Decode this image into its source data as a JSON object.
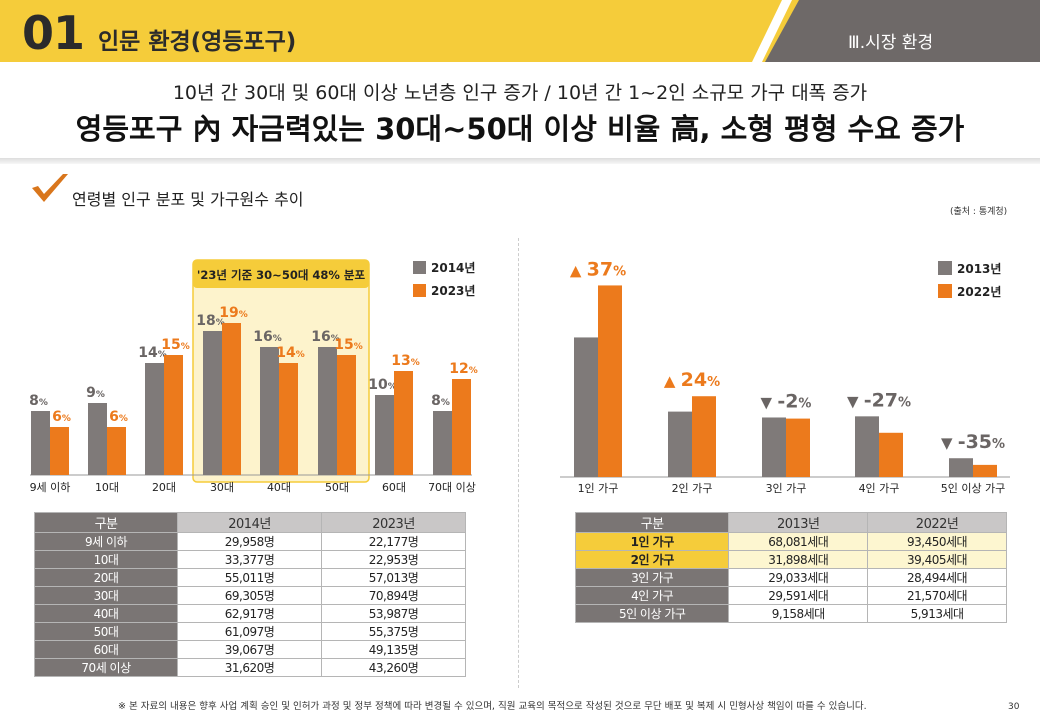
{
  "header": {
    "number": "01",
    "title": "인문 환경(영등포구)",
    "section": "Ⅲ.시장 환경"
  },
  "subtitle": "10년 간 30대 및 60대 이상 노년층 인구 증가 / 10년 간 1~2인 소규모 가구 대폭 증가",
  "headline": "영등포구 內 자금력있는 30대~50대 이상 비율 高, 소형 평형 수요 증가",
  "section_title": "연령별 인구 분포 및 가구원수 추이",
  "source": "(출처 : 통계청)",
  "colors": {
    "gray": "#7f7a79",
    "orange": "#ec7a1c",
    "yellow": "#f5cc3a"
  },
  "chart_data": [
    {
      "type": "bar",
      "categories": [
        "9세 이하",
        "10대",
        "20대",
        "30대",
        "40대",
        "50대",
        "60대",
        "70대 이상"
      ],
      "series": [
        {
          "name": "2014년",
          "values": [
            8,
            9,
            14,
            18,
            16,
            16,
            10,
            8
          ],
          "labels": [
            "8%",
            "9%",
            "14%",
            "18%",
            "16%",
            "16%",
            "10%",
            "8%"
          ]
        },
        {
          "name": "2023년",
          "values": [
            6,
            6,
            15,
            19,
            14,
            15,
            13,
            12
          ],
          "labels": [
            "6%",
            "6%",
            "15%",
            "19%",
            "14%",
            "15%",
            "13%",
            "12%"
          ]
        }
      ],
      "annotation": "'23년 기준 30~50대 48% 분포",
      "legend": "top-right"
    },
    {
      "type": "bar",
      "categories": [
        "1인 가구",
        "2인 가구",
        "3인 가구",
        "4인 가구",
        "5인 이상 가구"
      ],
      "series": [
        {
          "name": "2013년",
          "values": [
            68081,
            31898,
            29033,
            29591,
            9158
          ]
        },
        {
          "name": "2022년",
          "values": [
            93450,
            39405,
            28494,
            21570,
            5913
          ]
        }
      ],
      "changes": [
        "▲ 37%",
        "▲ 24%",
        "▼ -2%",
        "▼ -27%",
        "▼ -35%"
      ],
      "legend": "top-right"
    }
  ],
  "table_left": {
    "headers": [
      "구분",
      "2014년",
      "2023년"
    ],
    "rows": [
      [
        "9세 이하",
        "29,958명",
        "22,177명"
      ],
      [
        "10대",
        "33,377명",
        "22,953명"
      ],
      [
        "20대",
        "55,011명",
        "57,013명"
      ],
      [
        "30대",
        "69,305명",
        "70,894명"
      ],
      [
        "40대",
        "62,917명",
        "53,987명"
      ],
      [
        "50대",
        "61,097명",
        "55,375명"
      ],
      [
        "60대",
        "39,067명",
        "49,135명"
      ],
      [
        "70세 이상",
        "31,620명",
        "43,260명"
      ]
    ]
  },
  "table_right": {
    "headers": [
      "구분",
      "2013년",
      "2022년"
    ],
    "rows": [
      [
        "1인 가구",
        "68,081세대",
        "93,450세대"
      ],
      [
        "2인 가구",
        "31,898세대",
        "39,405세대"
      ],
      [
        "3인 가구",
        "29,033세대",
        "28,494세대"
      ],
      [
        "4인 가구",
        "29,591세대",
        "21,570세대"
      ],
      [
        "5인 이상 가구",
        "9,158세대",
        "5,913세대"
      ]
    ]
  },
  "footer": "※ 본 자료의 내용은 향후 사업 계획 승인 및 인허가 과정 및 정부 정책에 따라 변경될 수 있으며, 직원 교육의 목적으로 작성된 것으로 무단 배포 및 복제 시 민형사상 책임이 따를 수 있습니다.",
  "page_number": "30"
}
